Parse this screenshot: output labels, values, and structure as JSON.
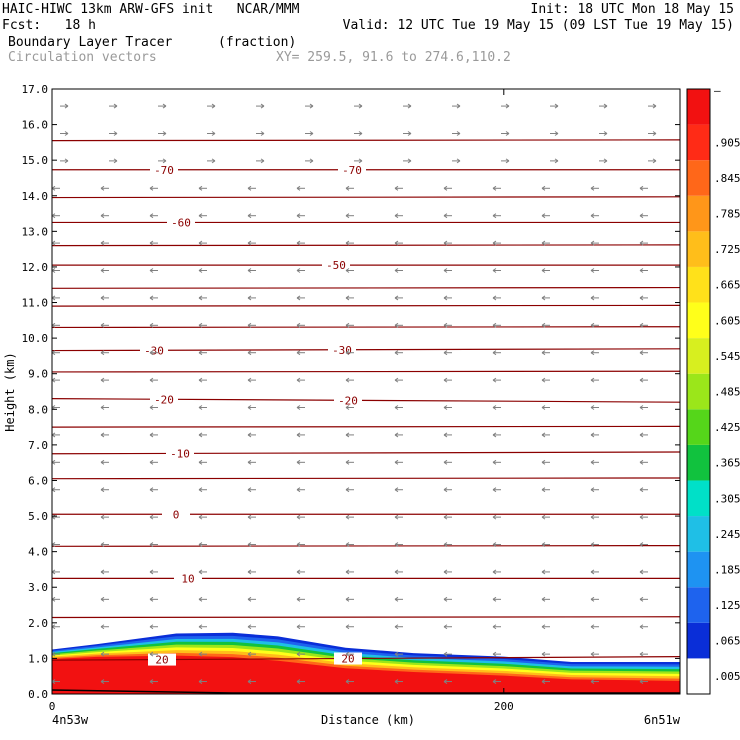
{
  "header": {
    "line1_left": "HAIC-HIWC 13km ARW-GFS init   NCAR/MMM",
    "line1_right": "Init: 18 UTC Mon 18 May 15",
    "line2_left": "Fcst:   18 h",
    "line2_right": "Valid: 12 UTC Tue 19 May 15 (09 LST Tue 19 May 15)",
    "field_name": "Boundary Layer Tracer",
    "field_units": "(fraction)",
    "vector_name": "Circulation vectors",
    "xy_info": "XY= 259.5, 91.6 to 274.6,110.2"
  },
  "colors": {
    "contour": "#8b0000",
    "vector": "#808080",
    "colorbar": [
      "#ffffff",
      "#0a2ed8",
      "#1e63ee",
      "#1e93f2",
      "#1fbfe6",
      "#00e0c8",
      "#11c23e",
      "#55d61a",
      "#9be61a",
      "#d7ef1f",
      "#ffff1a",
      "#ffe11a",
      "#ffbe1a",
      "#ff9619",
      "#ff6719",
      "#ff2b16",
      "#f21111"
    ]
  },
  "colorbar_labels": [
    ".005",
    ".065",
    ".125",
    ".185",
    ".245",
    ".305",
    ".365",
    ".425",
    ".485",
    ".545",
    ".605",
    ".665",
    ".725",
    ".785",
    ".845",
    ".905"
  ],
  "colorbar_top_label": "–",
  "chart_data": {
    "type": "heatmap",
    "title": "Boundary Layer Tracer",
    "ylabel": "Height (km)",
    "xlabel": "Distance (km)",
    "xlim": [
      0,
      278
    ],
    "ylim": [
      0,
      17
    ],
    "x_ticks": [
      0,
      200
    ],
    "y_ticks": [
      "0.0",
      "1.0",
      "2.0",
      "3.0",
      "4.0",
      "5.0",
      "6.0",
      "7.0",
      "8.0",
      "9.0",
      "10.0",
      "11.0",
      "12.0",
      "13.0",
      "14.0",
      "15.0",
      "16.0",
      "17.0"
    ],
    "x_end_labels": {
      "left": "4n53w",
      "right": "6n51w"
    },
    "tracer_layer": {
      "x": [
        0,
        20,
        55,
        80,
        100,
        130,
        160,
        200,
        230,
        278
      ],
      "top_km": [
        1.25,
        1.4,
        1.7,
        1.72,
        1.62,
        1.3,
        1.15,
        1.05,
        0.9,
        0.9
      ],
      "core_top_km": [
        0.95,
        1.0,
        1.0,
        0.95,
        0.85,
        0.65,
        0.55,
        0.45,
        0.35,
        0.3
      ]
    },
    "temperature_contours": [
      {
        "label": "-70",
        "label_at_x": [
          112,
          300
        ],
        "y_km": [
          14.73,
          14.73
        ]
      },
      {
        "label": "-60",
        "label_at_x": [
          129
        ],
        "y_km": [
          13.25,
          13.25
        ]
      },
      {
        "label": "-50",
        "label_at_x": [
          284
        ],
        "y_km": [
          12.05,
          12.05
        ]
      },
      {
        "label": "-30",
        "label_at_x": [
          102,
          290
        ],
        "y_km": [
          9.65,
          9.7
        ]
      },
      {
        "label": "-20",
        "label_at_x": [
          112,
          296
        ],
        "y_km": [
          8.3,
          8.2
        ]
      },
      {
        "label": "-10",
        "label_at_x": [
          128
        ],
        "y_km": [
          6.75,
          6.8
        ]
      },
      {
        "label": "0",
        "label_at_x": [
          124
        ],
        "y_km": [
          5.05,
          5.05
        ]
      },
      {
        "label": "10",
        "label_at_x": [
          136
        ],
        "y_km": [
          3.25,
          3.25
        ]
      },
      {
        "label": "20",
        "label_at_x": [
          110,
          296
        ],
        "y_km": [
          0.95,
          1.05
        ]
      }
    ]
  }
}
